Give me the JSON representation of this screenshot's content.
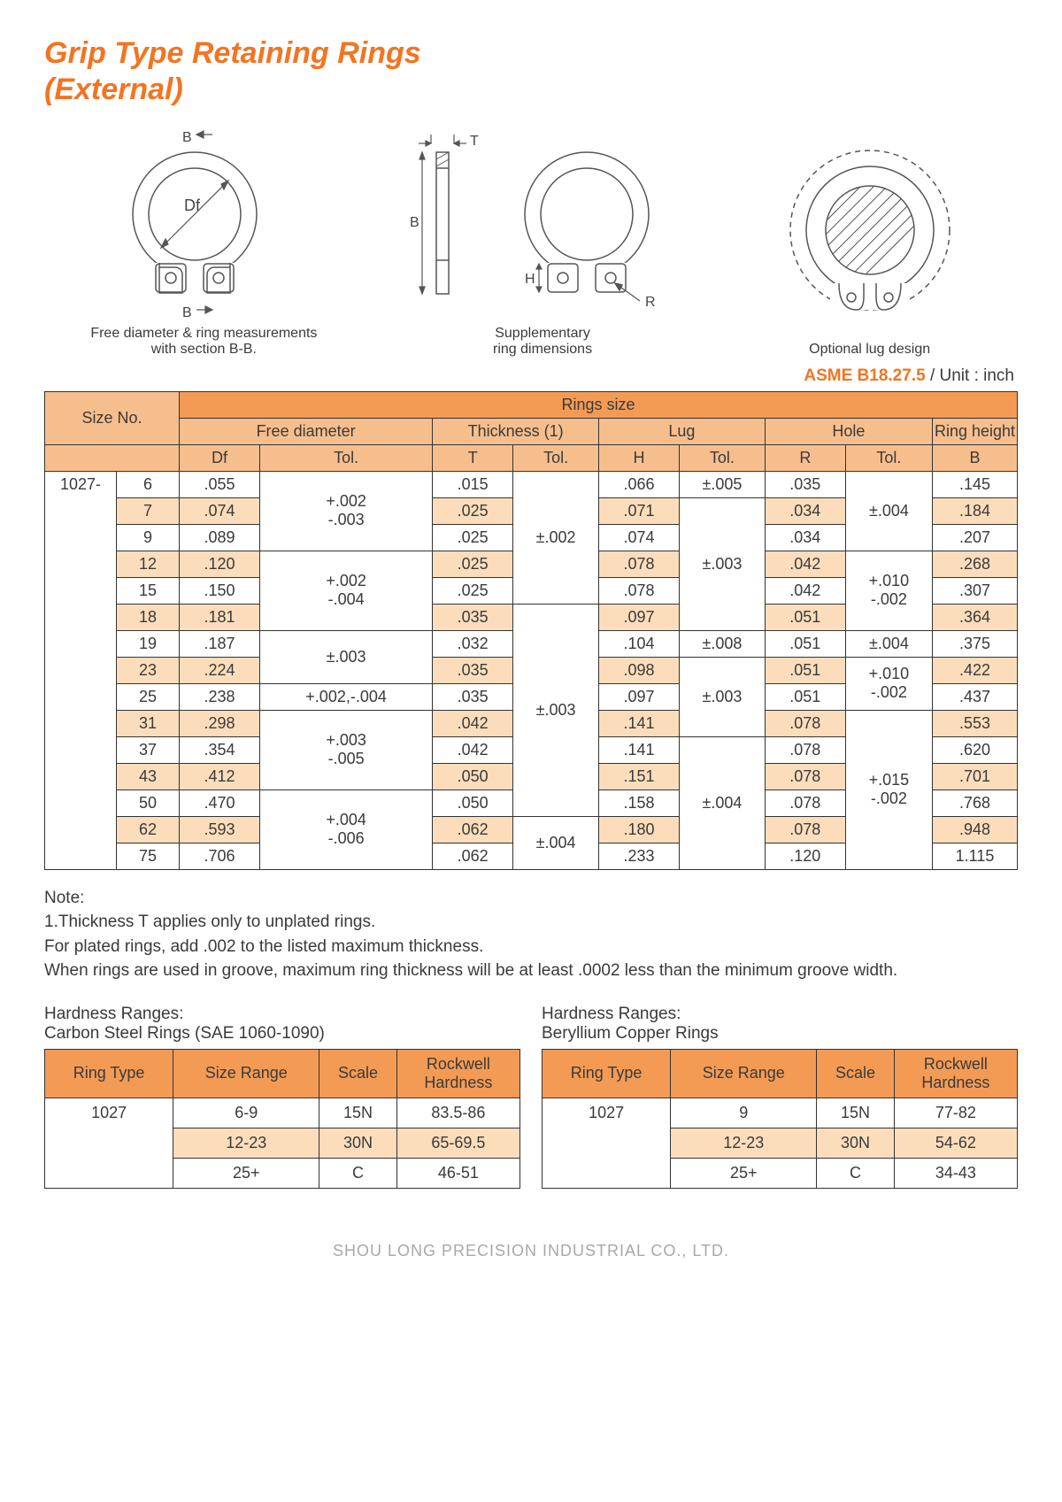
{
  "title_line1": "Grip Type Retaining Rings",
  "title_line2": "(External)",
  "diagram_captions": {
    "d1a": "Free diameter & ring measurements",
    "d1b": "with section B-B.",
    "d2a": "Supplementary",
    "d2b": "ring dimensions",
    "d3": "Optional lug design"
  },
  "diagram_labels": {
    "B": "B",
    "T": "T",
    "Df": "Df",
    "H": "H",
    "R": "R"
  },
  "spec_std": "ASME B18.27.5",
  "spec_unit": " / Unit : inch",
  "headers": {
    "size_no": "Size No.",
    "rings_size": "Rings size",
    "free_dia": "Free diameter",
    "thickness": "Thickness (1)",
    "lug": "Lug",
    "hole": "Hole",
    "ring_h": "Ring height",
    "Df": "Df",
    "T": "T",
    "H": "H",
    "R": "R",
    "B": "B",
    "Tol": "Tol."
  },
  "series": "1027-",
  "rows": [
    {
      "n": "6",
      "df": ".055",
      "t": ".015",
      "h": ".066",
      "r": ".035",
      "b": ".145"
    },
    {
      "n": "7",
      "df": ".074",
      "t": ".025",
      "h": ".071",
      "r": ".034",
      "b": ".184"
    },
    {
      "n": "9",
      "df": ".089",
      "t": ".025",
      "h": ".074",
      "r": ".034",
      "b": ".207"
    },
    {
      "n": "12",
      "df": ".120",
      "t": ".025",
      "h": ".078",
      "r": ".042",
      "b": ".268"
    },
    {
      "n": "15",
      "df": ".150",
      "t": ".025",
      "h": ".078",
      "r": ".042",
      "b": ".307"
    },
    {
      "n": "18",
      "df": ".181",
      "t": ".035",
      "h": ".097",
      "r": ".051",
      "b": ".364"
    },
    {
      "n": "19",
      "df": ".187",
      "t": ".032",
      "h": ".104",
      "r": ".051",
      "b": ".375"
    },
    {
      "n": "23",
      "df": ".224",
      "t": ".035",
      "h": ".098",
      "r": ".051",
      "b": ".422"
    },
    {
      "n": "25",
      "df": ".238",
      "t": ".035",
      "h": ".097",
      "r": ".051",
      "b": ".437"
    },
    {
      "n": "31",
      "df": ".298",
      "t": ".042",
      "h": ".141",
      "r": ".078",
      "b": ".553"
    },
    {
      "n": "37",
      "df": ".354",
      "t": ".042",
      "h": ".141",
      "r": ".078",
      "b": ".620"
    },
    {
      "n": "43",
      "df": ".412",
      "t": ".050",
      "h": ".151",
      "r": ".078",
      "b": ".701"
    },
    {
      "n": "50",
      "df": ".470",
      "t": ".050",
      "h": ".158",
      "r": ".078",
      "b": ".768"
    },
    {
      "n": "62",
      "df": ".593",
      "t": ".062",
      "h": ".180",
      "r": ".078",
      "b": ".948"
    },
    {
      "n": "75",
      "df": ".706",
      "t": ".062",
      "h": ".233",
      "r": ".120",
      "b": "1.115"
    }
  ],
  "tol": {
    "df_6_9": "+.002\n-.003",
    "df_12_18": "+.002\n-.004",
    "df_19_23": "±.003",
    "df_25": "+.002,-.004",
    "df_31_43": "+.003\n-.005",
    "df_50_75": "+.004\n-.006",
    "t_6_15": "±.002",
    "t_18_50": "±.003",
    "t_62_75": "±.004",
    "h_6": "±.005",
    "h_7_18": "±.003",
    "h_19": "±.008",
    "h_23_31": "±.003",
    "h_37_75": "±.004",
    "r_6_9": "±.004",
    "r_12_18": "+.010\n-.002",
    "r_19": "±.004",
    "r_23_25": "+.010\n-.002",
    "r_31_75": "+.015\n-.002"
  },
  "note_title": "Note:",
  "note_lines": [
    "1.Thickness T applies only to unplated rings.",
    "For plated rings, add .002 to the listed maximum thickness.",
    "When rings are used in groove, maximum ring thickness will be at least .0002 less than the minimum groove width."
  ],
  "hardness": {
    "left_title1": "Hardness Ranges:",
    "left_title2": "Carbon Steel Rings (SAE 1060-1090)",
    "right_title1": "Hardness Ranges:",
    "right_title2": "Beryllium Copper Rings",
    "cols": {
      "rt": "Ring Type",
      "sr": "Size Range",
      "sc": "Scale",
      "rh1": "Rockwell",
      "rh2": "Hardness"
    },
    "left_rows": [
      {
        "rt": "1027",
        "sr": "6-9",
        "sc": "15N",
        "rh": "83.5-86"
      },
      {
        "rt": "",
        "sr": "12-23",
        "sc": "30N",
        "rh": "65-69.5"
      },
      {
        "rt": "",
        "sr": "25+",
        "sc": "C",
        "rh": "46-51"
      }
    ],
    "right_rows": [
      {
        "rt": "1027",
        "sr": "9",
        "sc": "15N",
        "rh": "77-82"
      },
      {
        "rt": "",
        "sr": "12-23",
        "sc": "30N",
        "rh": "54-62"
      },
      {
        "rt": "",
        "sr": "25+",
        "sc": "C",
        "rh": "34-43"
      }
    ]
  },
  "footer": "SHOU LONG PRECISION INDUSTRIAL CO., LTD.",
  "colors": {
    "accent": "#f37421",
    "hdr1": "#f39b55",
    "hdr2": "#f7be8d",
    "stripe": "#fcddbb",
    "border": "#333333",
    "text": "#3a3a3a",
    "footer": "#a8a8a8"
  }
}
